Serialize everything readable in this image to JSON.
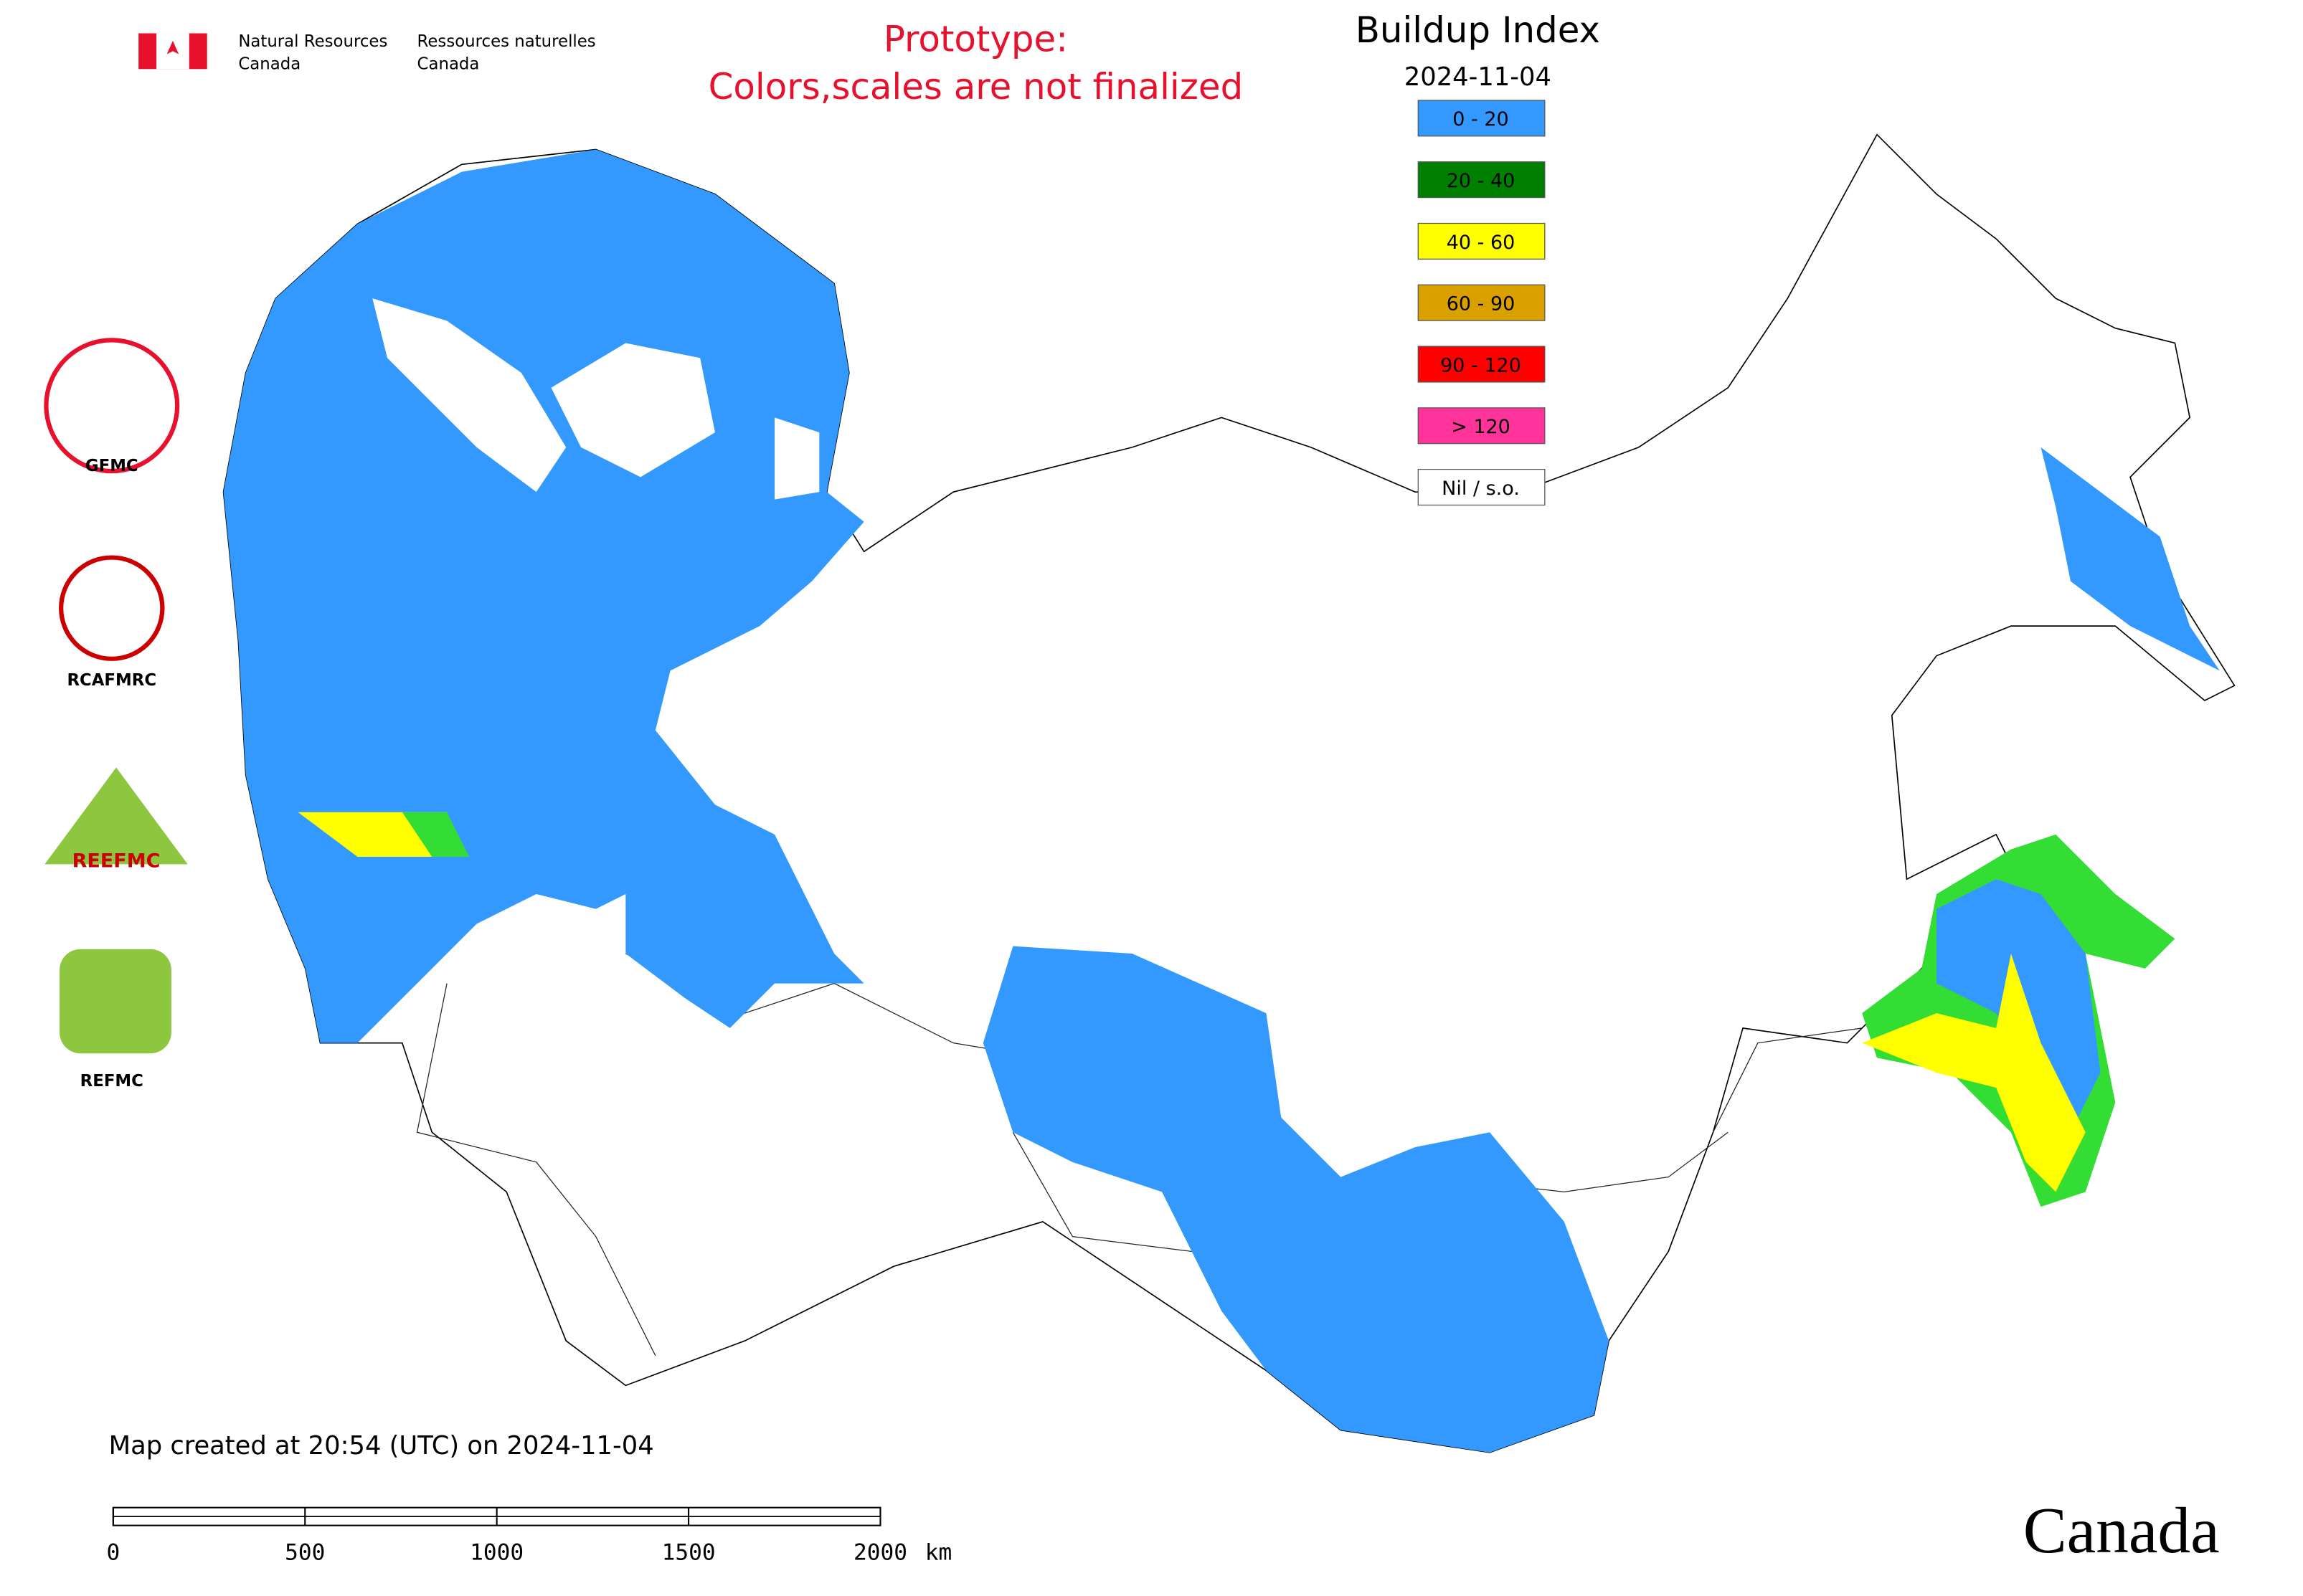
{
  "header": {
    "agency_en": [
      "Natural Resources",
      "Canada"
    ],
    "agency_fr": [
      "Ressources naturelles",
      "Canada"
    ]
  },
  "prototype_note": [
    "Prototype:",
    "Colors,scales are not finalized"
  ],
  "legend": {
    "title": "Buildup Index",
    "date": "2024-11-04",
    "items": [
      {
        "label": "0 - 20",
        "color": "#3399ff"
      },
      {
        "label": "20 - 40",
        "color": "#008000"
      },
      {
        "label": "40 - 60",
        "color": "#ffff00"
      },
      {
        "label": "60 - 90",
        "color": "#daa000"
      },
      {
        "label": "90 - 120",
        "color": "#ff0000"
      },
      {
        "label": "> 120",
        "color": "#ff3399"
      },
      {
        "label": "Nil / s.o.",
        "color": "#ffffff"
      }
    ]
  },
  "logos": [
    "GFMC",
    "RCAFMRC",
    "REEFMC",
    "REFMC"
  ],
  "footer": {
    "created": "Map created at 20:54 (UTC) on 2024-11-04",
    "wordmark": "Canada"
  },
  "scale_bar": {
    "ticks": [
      0,
      500,
      1000,
      1500,
      2000
    ],
    "unit": "km"
  }
}
